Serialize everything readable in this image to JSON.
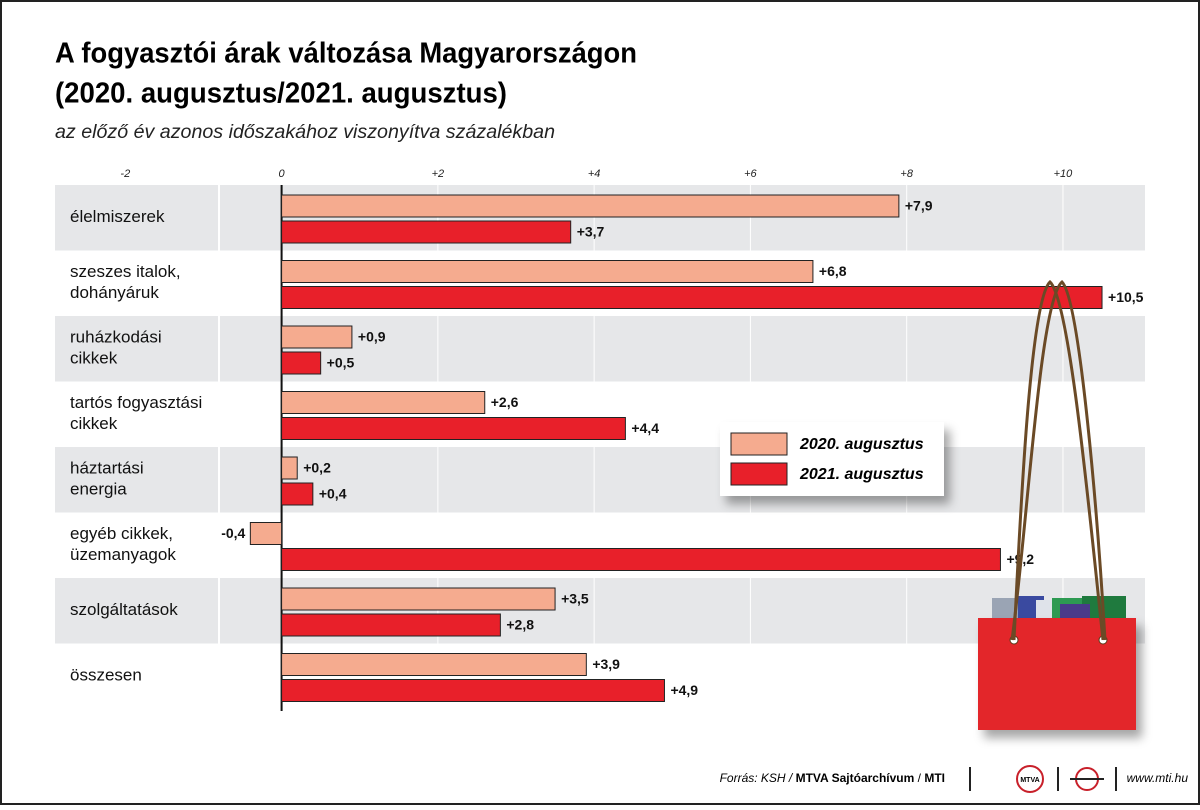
{
  "chart_data": {
    "type": "bar",
    "orientation": "horizontal",
    "title": [
      "A fogyasztói árak változása Magyarországon",
      "(2020. augusztus/2021. augusztus)"
    ],
    "subtitle": "az előző év azonos időszakához viszonyítva százalékban",
    "categories": [
      [
        "élelmiszerek"
      ],
      [
        "szeszes italok,",
        "dohányáruk"
      ],
      [
        "ruházkodási",
        "cikkek"
      ],
      [
        "tartós fogyasztási",
        "cikkek"
      ],
      [
        "háztartási",
        "energia"
      ],
      [
        "egyéb cikkek,",
        "üzemanyagok"
      ],
      [
        "szolgáltatások"
      ],
      [
        "összesen"
      ]
    ],
    "series": [
      {
        "name": "2020. augusztus",
        "color": "#f5ab8f",
        "values": [
          7.9,
          6.8,
          0.9,
          2.6,
          0.2,
          -0.4,
          3.5,
          3.9
        ],
        "value_labels": [
          "+7,9",
          "+6,8",
          "+0,9",
          "+2,6",
          "+0,2",
          "-0,4",
          "+3,5",
          "+3,9"
        ]
      },
      {
        "name": "2021. augusztus",
        "color": "#e8202a",
        "values": [
          3.7,
          10.5,
          0.5,
          4.4,
          0.4,
          9.2,
          2.8,
          4.9
        ],
        "value_labels": [
          "+3,7",
          "+10,5",
          "+0,5",
          "+4,4",
          "+0,4",
          "+9,2",
          "+2,8",
          "+4,9"
        ]
      }
    ],
    "xlim": [
      -2.9,
      11.05
    ],
    "xticks": [
      -2,
      0,
      {
        "value": 2,
        "label": "+2"
      },
      {
        "value": 4,
        "label": "+4"
      },
      {
        "value": 6,
        "label": "+6"
      },
      {
        "value": 8,
        "label": "+8"
      },
      {
        "value": 10,
        "label": "+10"
      }
    ],
    "grid": true
  },
  "footer": {
    "source": [
      "Forrás: KSH /",
      "MTVA Sajtóarchívum",
      "/",
      "MTI"
    ],
    "logo": "MTVA",
    "url": "www.mti.hu"
  }
}
